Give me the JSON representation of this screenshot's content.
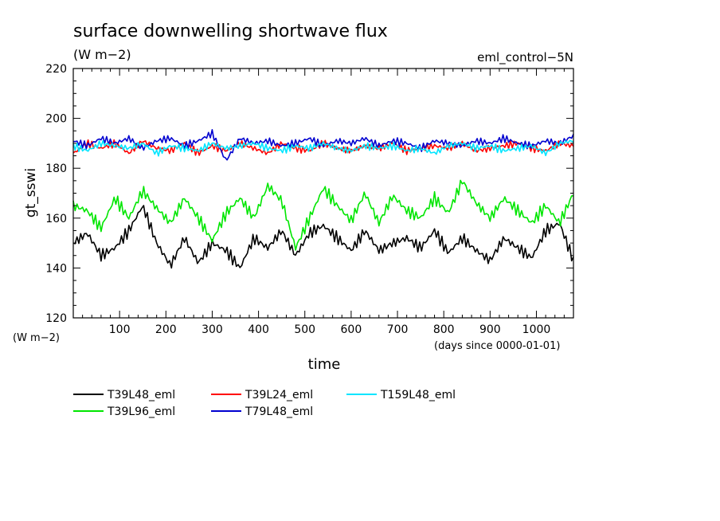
{
  "chart_data": {
    "type": "line",
    "title": "surface downwelling shortwave flux",
    "subtitle": "(W m−2)",
    "run_label": "eml_control−5N",
    "xlabel": "time",
    "ylabel": "gt_sswi",
    "yunit": "(W m−2)",
    "xunit": "(days since 0000-01-01)",
    "xlim": [
      0,
      1080
    ],
    "ylim": [
      120,
      220
    ],
    "xticks": [
      100,
      200,
      300,
      400,
      500,
      600,
      700,
      800,
      900,
      1000
    ],
    "yticks": [
      120,
      140,
      160,
      180,
      200,
      220
    ],
    "legend_position": "bottom",
    "x": [
      0,
      30,
      60,
      90,
      120,
      150,
      180,
      210,
      240,
      270,
      300,
      330,
      360,
      390,
      420,
      450,
      480,
      510,
      540,
      570,
      600,
      630,
      660,
      690,
      720,
      750,
      780,
      810,
      840,
      870,
      900,
      930,
      960,
      990,
      1020,
      1050,
      1080
    ],
    "series": [
      {
        "name": "T39L48_eml",
        "color": "#000000",
        "values": [
          150,
          154,
          145,
          148,
          155,
          165,
          150,
          141,
          152,
          142,
          150,
          147,
          140,
          152,
          148,
          155,
          145,
          154,
          157,
          152,
          147,
          155,
          147,
          150,
          152,
          148,
          155,
          146,
          152,
          147,
          143,
          152,
          148,
          144,
          155,
          158,
          143
        ]
      },
      {
        "name": "T39L96_eml",
        "color": "#00e600",
        "values": [
          165,
          163,
          156,
          168,
          160,
          171,
          164,
          158,
          168,
          160,
          151,
          162,
          168,
          160,
          173,
          167,
          148,
          160,
          172,
          165,
          159,
          170,
          158,
          169,
          163,
          160,
          168,
          162,
          175,
          166,
          160,
          168,
          163,
          158,
          165,
          158,
          170
        ]
      },
      {
        "name": "T39L24_eml",
        "color": "#ff0000",
        "values": [
          186,
          190,
          188,
          190,
          186,
          191,
          188,
          187,
          190,
          186,
          189,
          187,
          190,
          188,
          186,
          190,
          188,
          187,
          190,
          188,
          187,
          189,
          188,
          190,
          187,
          188,
          189,
          188,
          190,
          187,
          188,
          189,
          190,
          188,
          187,
          190,
          189
        ]
      },
      {
        "name": "T79L48_eml",
        "color": "#0000d0",
        "values": [
          191,
          189,
          192,
          190,
          192,
          188,
          191,
          192,
          189,
          191,
          194,
          183,
          192,
          190,
          191,
          189,
          190,
          192,
          189,
          191,
          190,
          192,
          189,
          191,
          190,
          188,
          191,
          190,
          189,
          191,
          190,
          192,
          190,
          189,
          191,
          190,
          193
        ]
      },
      {
        "name": "T159L48_eml",
        "color": "#00e5ff",
        "values": [
          189,
          187,
          190,
          189,
          188,
          190,
          186,
          189,
          188,
          187,
          190,
          188,
          189,
          190,
          188,
          187,
          189,
          188,
          190,
          188,
          187,
          189,
          188,
          189,
          187,
          188,
          186,
          189,
          190,
          188,
          189,
          187,
          188,
          189,
          186,
          190,
          191
        ]
      }
    ]
  }
}
